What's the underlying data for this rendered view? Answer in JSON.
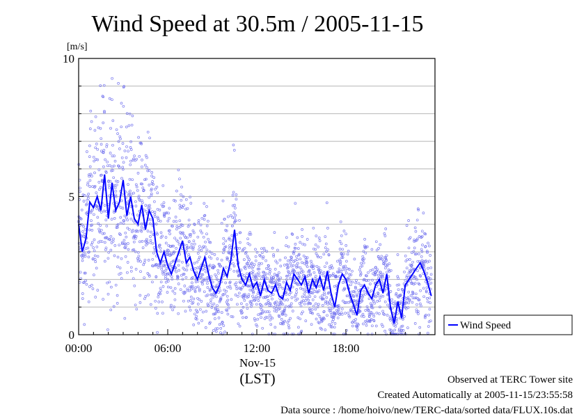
{
  "chart_data": {
    "type": "scatter+line",
    "title": "Wind Speed at 30.5m / 2005-11-15",
    "ylabel": "[m/s]",
    "xlabel": "(LST)",
    "date_label": "Nov-15",
    "ylim": [
      0,
      10
    ],
    "xlim_hours": [
      0,
      24
    ],
    "x_ticks": [
      {
        "hour": 0,
        "label": "00:00"
      },
      {
        "hour": 6,
        "label": "06:00"
      },
      {
        "hour": 12,
        "label": "12:00"
      },
      {
        "hour": 18,
        "label": "18:00"
      }
    ],
    "y_ticks": [
      {
        "value": 0,
        "label": "0"
      },
      {
        "value": 5,
        "label": "5"
      },
      {
        "value": 10,
        "label": "10"
      }
    ],
    "grid": "horizontal every 1 m/s",
    "legend": {
      "position": "right",
      "label": "Wind Speed"
    },
    "series": [
      {
        "name": "Wind Speed",
        "color": "#0000ff",
        "scatter_color": "#7b7bef",
        "hours": [
          0.0,
          0.25,
          0.5,
          0.75,
          1.0,
          1.25,
          1.5,
          1.75,
          2.0,
          2.25,
          2.5,
          2.75,
          3.0,
          3.25,
          3.5,
          3.75,
          4.0,
          4.25,
          4.5,
          4.75,
          5.0,
          5.25,
          5.5,
          5.75,
          6.0,
          6.25,
          6.5,
          6.75,
          7.0,
          7.25,
          7.5,
          7.75,
          8.0,
          8.25,
          8.5,
          8.75,
          9.0,
          9.25,
          9.5,
          9.75,
          10.0,
          10.25,
          10.5,
          10.75,
          11.0,
          11.25,
          11.5,
          11.75,
          12.0,
          12.25,
          12.5,
          12.75,
          13.0,
          13.25,
          13.5,
          13.75,
          14.0,
          14.25,
          14.5,
          14.75,
          15.0,
          15.25,
          15.5,
          15.75,
          16.0,
          16.25,
          16.5,
          16.75,
          17.0,
          17.25,
          17.5,
          17.75,
          18.0,
          18.25,
          18.5,
          18.75,
          19.0,
          19.25,
          19.5,
          19.75,
          20.0,
          20.25,
          20.5,
          20.75,
          21.0,
          21.25,
          21.5,
          21.75,
          22.0,
          22.25,
          22.5,
          22.75,
          23.0,
          23.25,
          23.5,
          23.75
        ],
        "values": [
          4.0,
          3.0,
          3.5,
          4.8,
          4.6,
          5.0,
          4.5,
          5.8,
          4.2,
          5.5,
          4.5,
          4.8,
          5.6,
          4.3,
          5.0,
          4.2,
          4.0,
          4.7,
          3.8,
          4.5,
          4.2,
          3.0,
          2.6,
          3.0,
          2.5,
          2.2,
          2.6,
          3.0,
          3.4,
          2.6,
          2.8,
          2.3,
          2.0,
          2.4,
          2.8,
          2.2,
          1.7,
          1.5,
          1.8,
          2.4,
          2.1,
          2.7,
          3.8,
          2.5,
          2.0,
          1.8,
          2.2,
          1.7,
          1.9,
          1.4,
          2.0,
          1.6,
          1.5,
          1.8,
          1.4,
          1.3,
          1.9,
          1.6,
          2.2,
          2.0,
          1.8,
          2.1,
          1.5,
          2.0,
          1.7,
          2.1,
          1.6,
          2.3,
          1.5,
          1.0,
          1.8,
          2.2,
          2.0,
          1.5,
          1.1,
          0.7,
          1.6,
          1.8,
          1.5,
          1.3,
          1.8,
          2.0,
          1.5,
          2.2,
          1.0,
          0.4,
          1.2,
          0.6,
          1.8,
          2.0,
          2.2,
          2.4,
          2.6,
          2.3,
          1.9,
          1.4
        ]
      }
    ]
  },
  "footer": {
    "line1": "Observed at TERC Tower site",
    "line2": "Created Automatically at 2005-11-15/23:55:58",
    "line3": "Data source : /home/hoivo/new/TERC-data/sorted  data/FLUX.10s.dat"
  }
}
